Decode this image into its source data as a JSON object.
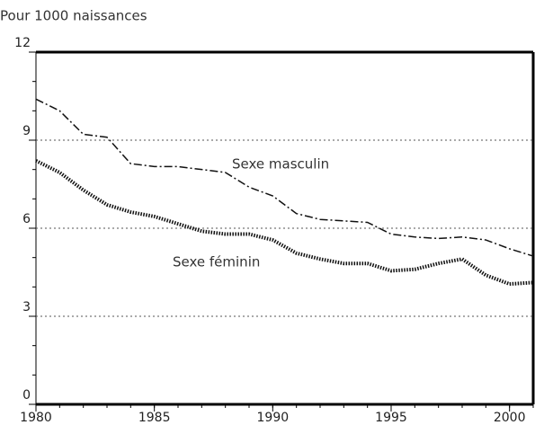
{
  "chart_data": {
    "type": "line",
    "y_label": "Pour 1000 naissances",
    "x": [
      1980,
      1981,
      1982,
      1983,
      1984,
      1985,
      1986,
      1987,
      1988,
      1989,
      1990,
      1991,
      1992,
      1993,
      1994,
      1995,
      1996,
      1997,
      1998,
      1999,
      2000,
      2001
    ],
    "series": [
      {
        "name": "Sexe masculin",
        "color": "#111111",
        "dash": "dashdot",
        "values": [
          10.4,
          10.0,
          9.2,
          9.1,
          8.2,
          8.1,
          8.1,
          8.0,
          7.9,
          7.4,
          7.1,
          6.5,
          6.3,
          6.25,
          6.2,
          5.8,
          5.7,
          5.65,
          5.7,
          5.6,
          5.3,
          5.05
        ]
      },
      {
        "name": "Sexe féminin",
        "color": "#111111",
        "dash": "dotted",
        "values": [
          8.3,
          7.9,
          7.3,
          6.8,
          6.55,
          6.4,
          6.15,
          5.9,
          5.8,
          5.8,
          5.6,
          5.15,
          4.95,
          4.8,
          4.8,
          4.55,
          4.6,
          4.8,
          4.95,
          4.4,
          4.1,
          4.15
        ]
      }
    ],
    "xlim": [
      1980,
      2001
    ],
    "xticks": [
      1980,
      1985,
      1990,
      1995,
      2000
    ],
    "ylim": [
      0,
      12
    ],
    "yticks": [
      0,
      3,
      6,
      9,
      12
    ],
    "grid": true
  }
}
